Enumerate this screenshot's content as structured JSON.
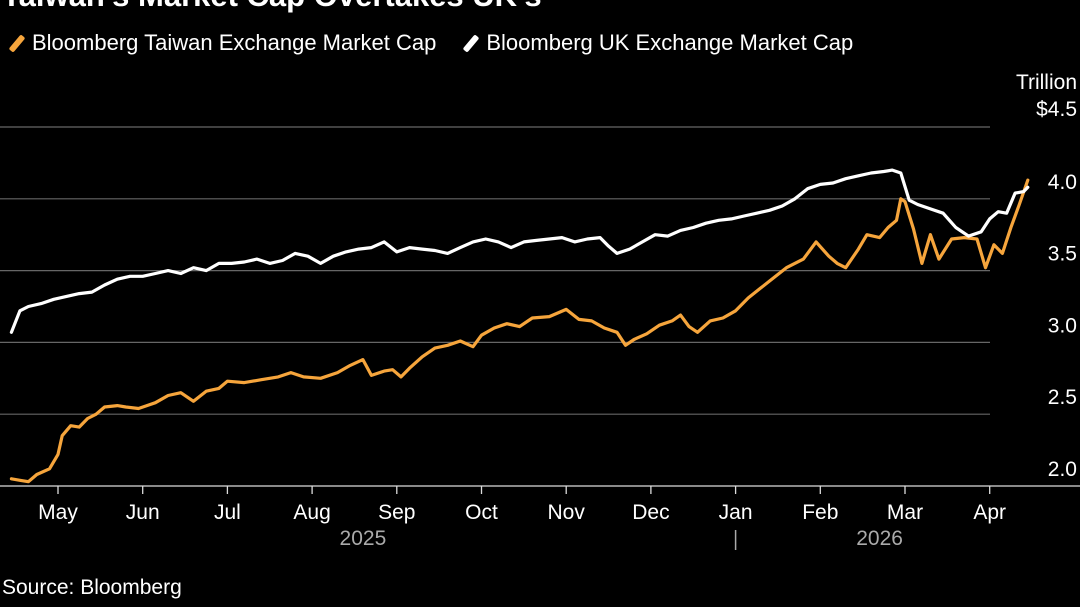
{
  "chart_data": {
    "type": "line",
    "title": "Taiwan's Market Cap Overtakes UK's",
    "ylabel": "Trillion",
    "ylim": [
      2.0,
      4.5
    ],
    "yticks": [
      {
        "value": 2.0,
        "label": "2.0"
      },
      {
        "value": 2.5,
        "label": "2.5"
      },
      {
        "value": 3.0,
        "label": "3.0"
      },
      {
        "value": 3.5,
        "label": "3.5"
      },
      {
        "value": 4.0,
        "label": "4.0"
      },
      {
        "value": 4.5,
        "label": "$4.5"
      }
    ],
    "xticks": [
      {
        "month": 0,
        "label": "May"
      },
      {
        "month": 1,
        "label": "Jun"
      },
      {
        "month": 2,
        "label": "Jul"
      },
      {
        "month": 3,
        "label": "Aug"
      },
      {
        "month": 4,
        "label": "Sep"
      },
      {
        "month": 5,
        "label": "Oct"
      },
      {
        "month": 6,
        "label": "Nov"
      },
      {
        "month": 7,
        "label": "Dec"
      },
      {
        "month": 8,
        "label": "Jan"
      },
      {
        "month": 9,
        "label": "Feb"
      },
      {
        "month": 10,
        "label": "Mar"
      },
      {
        "month": 11,
        "label": "Apr"
      }
    ],
    "years": [
      {
        "center_month": 3.6,
        "label": "2025"
      },
      {
        "center_month": 9.7,
        "label": "2026"
      }
    ],
    "year_divider_month": 8.0,
    "x_unit": "months since May 1, 2025",
    "series": [
      {
        "name": "Bloomberg Taiwan Exchange Market Cap",
        "color": "#f6a53c",
        "points": [
          [
            -0.55,
            2.05
          ],
          [
            -0.45,
            2.04
          ],
          [
            -0.35,
            2.03
          ],
          [
            -0.25,
            2.08
          ],
          [
            -0.1,
            2.12
          ],
          [
            0.0,
            2.22
          ],
          [
            0.05,
            2.35
          ],
          [
            0.15,
            2.42
          ],
          [
            0.25,
            2.41
          ],
          [
            0.35,
            2.47
          ],
          [
            0.45,
            2.5
          ],
          [
            0.55,
            2.55
          ],
          [
            0.7,
            2.56
          ],
          [
            0.8,
            2.55
          ],
          [
            0.95,
            2.54
          ],
          [
            1.05,
            2.56
          ],
          [
            1.15,
            2.58
          ],
          [
            1.3,
            2.63
          ],
          [
            1.45,
            2.65
          ],
          [
            1.6,
            2.59
          ],
          [
            1.75,
            2.66
          ],
          [
            1.9,
            2.68
          ],
          [
            2.0,
            2.73
          ],
          [
            2.2,
            2.72
          ],
          [
            2.4,
            2.74
          ],
          [
            2.6,
            2.76
          ],
          [
            2.75,
            2.79
          ],
          [
            2.9,
            2.76
          ],
          [
            3.1,
            2.75
          ],
          [
            3.3,
            2.79
          ],
          [
            3.45,
            2.84
          ],
          [
            3.6,
            2.88
          ],
          [
            3.7,
            2.77
          ],
          [
            3.85,
            2.8
          ],
          [
            3.95,
            2.81
          ],
          [
            4.05,
            2.76
          ],
          [
            4.15,
            2.82
          ],
          [
            4.3,
            2.9
          ],
          [
            4.45,
            2.96
          ],
          [
            4.6,
            2.98
          ],
          [
            4.75,
            3.01
          ],
          [
            4.9,
            2.97
          ],
          [
            5.0,
            3.05
          ],
          [
            5.15,
            3.1
          ],
          [
            5.3,
            3.13
          ],
          [
            5.45,
            3.11
          ],
          [
            5.6,
            3.17
          ],
          [
            5.8,
            3.18
          ],
          [
            6.0,
            3.23
          ],
          [
            6.15,
            3.16
          ],
          [
            6.3,
            3.15
          ],
          [
            6.45,
            3.1
          ],
          [
            6.6,
            3.07
          ],
          [
            6.7,
            2.98
          ],
          [
            6.8,
            3.02
          ],
          [
            6.95,
            3.06
          ],
          [
            7.1,
            3.12
          ],
          [
            7.25,
            3.15
          ],
          [
            7.35,
            3.19
          ],
          [
            7.45,
            3.11
          ],
          [
            7.55,
            3.07
          ],
          [
            7.7,
            3.15
          ],
          [
            7.85,
            3.17
          ],
          [
            8.0,
            3.22
          ],
          [
            8.15,
            3.31
          ],
          [
            8.3,
            3.38
          ],
          [
            8.45,
            3.45
          ],
          [
            8.6,
            3.52
          ],
          [
            8.8,
            3.58
          ],
          [
            8.95,
            3.7
          ],
          [
            9.1,
            3.6
          ],
          [
            9.2,
            3.55
          ],
          [
            9.3,
            3.52
          ],
          [
            9.45,
            3.65
          ],
          [
            9.55,
            3.75
          ],
          [
            9.7,
            3.73
          ],
          [
            9.8,
            3.8
          ],
          [
            9.9,
            3.85
          ],
          [
            9.95,
            4.0
          ],
          [
            10.0,
            3.98
          ],
          [
            10.1,
            3.79
          ],
          [
            10.2,
            3.55
          ],
          [
            10.3,
            3.75
          ],
          [
            10.4,
            3.58
          ],
          [
            10.55,
            3.72
          ],
          [
            10.7,
            3.73
          ],
          [
            10.85,
            3.72
          ],
          [
            10.95,
            3.52
          ],
          [
            11.05,
            3.68
          ],
          [
            11.15,
            3.62
          ],
          [
            11.25,
            3.8
          ],
          [
            11.35,
            3.96
          ],
          [
            11.45,
            4.13
          ]
        ]
      },
      {
        "name": "Bloomberg UK Exchange Market Cap",
        "color": "#ffffff",
        "points": [
          [
            -0.55,
            3.07
          ],
          [
            -0.45,
            3.22
          ],
          [
            -0.35,
            3.25
          ],
          [
            -0.2,
            3.27
          ],
          [
            -0.05,
            3.3
          ],
          [
            0.1,
            3.32
          ],
          [
            0.25,
            3.34
          ],
          [
            0.4,
            3.35
          ],
          [
            0.55,
            3.4
          ],
          [
            0.7,
            3.44
          ],
          [
            0.85,
            3.46
          ],
          [
            1.0,
            3.46
          ],
          [
            1.15,
            3.48
          ],
          [
            1.3,
            3.5
          ],
          [
            1.45,
            3.48
          ],
          [
            1.6,
            3.52
          ],
          [
            1.75,
            3.5
          ],
          [
            1.9,
            3.55
          ],
          [
            2.05,
            3.55
          ],
          [
            2.2,
            3.56
          ],
          [
            2.35,
            3.58
          ],
          [
            2.5,
            3.55
          ],
          [
            2.65,
            3.57
          ],
          [
            2.8,
            3.62
          ],
          [
            2.95,
            3.6
          ],
          [
            3.1,
            3.55
          ],
          [
            3.25,
            3.6
          ],
          [
            3.4,
            3.63
          ],
          [
            3.55,
            3.65
          ],
          [
            3.7,
            3.66
          ],
          [
            3.85,
            3.7
          ],
          [
            4.0,
            3.63
          ],
          [
            4.15,
            3.66
          ],
          [
            4.3,
            3.65
          ],
          [
            4.45,
            3.64
          ],
          [
            4.6,
            3.62
          ],
          [
            4.75,
            3.66
          ],
          [
            4.9,
            3.7
          ],
          [
            5.05,
            3.72
          ],
          [
            5.2,
            3.7
          ],
          [
            5.35,
            3.66
          ],
          [
            5.5,
            3.7
          ],
          [
            5.65,
            3.71
          ],
          [
            5.8,
            3.72
          ],
          [
            5.95,
            3.73
          ],
          [
            6.1,
            3.7
          ],
          [
            6.25,
            3.72
          ],
          [
            6.4,
            3.73
          ],
          [
            6.5,
            3.67
          ],
          [
            6.6,
            3.62
          ],
          [
            6.75,
            3.65
          ],
          [
            6.9,
            3.7
          ],
          [
            7.05,
            3.75
          ],
          [
            7.2,
            3.74
          ],
          [
            7.35,
            3.78
          ],
          [
            7.5,
            3.8
          ],
          [
            7.65,
            3.83
          ],
          [
            7.8,
            3.85
          ],
          [
            7.95,
            3.86
          ],
          [
            8.1,
            3.88
          ],
          [
            8.25,
            3.9
          ],
          [
            8.4,
            3.92
          ],
          [
            8.55,
            3.95
          ],
          [
            8.7,
            4.0
          ],
          [
            8.85,
            4.07
          ],
          [
            9.0,
            4.1
          ],
          [
            9.15,
            4.11
          ],
          [
            9.3,
            4.14
          ],
          [
            9.45,
            4.16
          ],
          [
            9.6,
            4.18
          ],
          [
            9.75,
            4.19
          ],
          [
            9.85,
            4.2
          ],
          [
            9.95,
            4.18
          ],
          [
            10.05,
            3.99
          ],
          [
            10.15,
            3.96
          ],
          [
            10.3,
            3.93
          ],
          [
            10.45,
            3.9
          ],
          [
            10.6,
            3.8
          ],
          [
            10.75,
            3.74
          ],
          [
            10.9,
            3.77
          ],
          [
            11.0,
            3.86
          ],
          [
            11.1,
            3.91
          ],
          [
            11.2,
            3.9
          ],
          [
            11.3,
            4.04
          ],
          [
            11.4,
            4.05
          ],
          [
            11.45,
            4.08
          ]
        ]
      }
    ]
  },
  "source": "Source: Bloomberg"
}
